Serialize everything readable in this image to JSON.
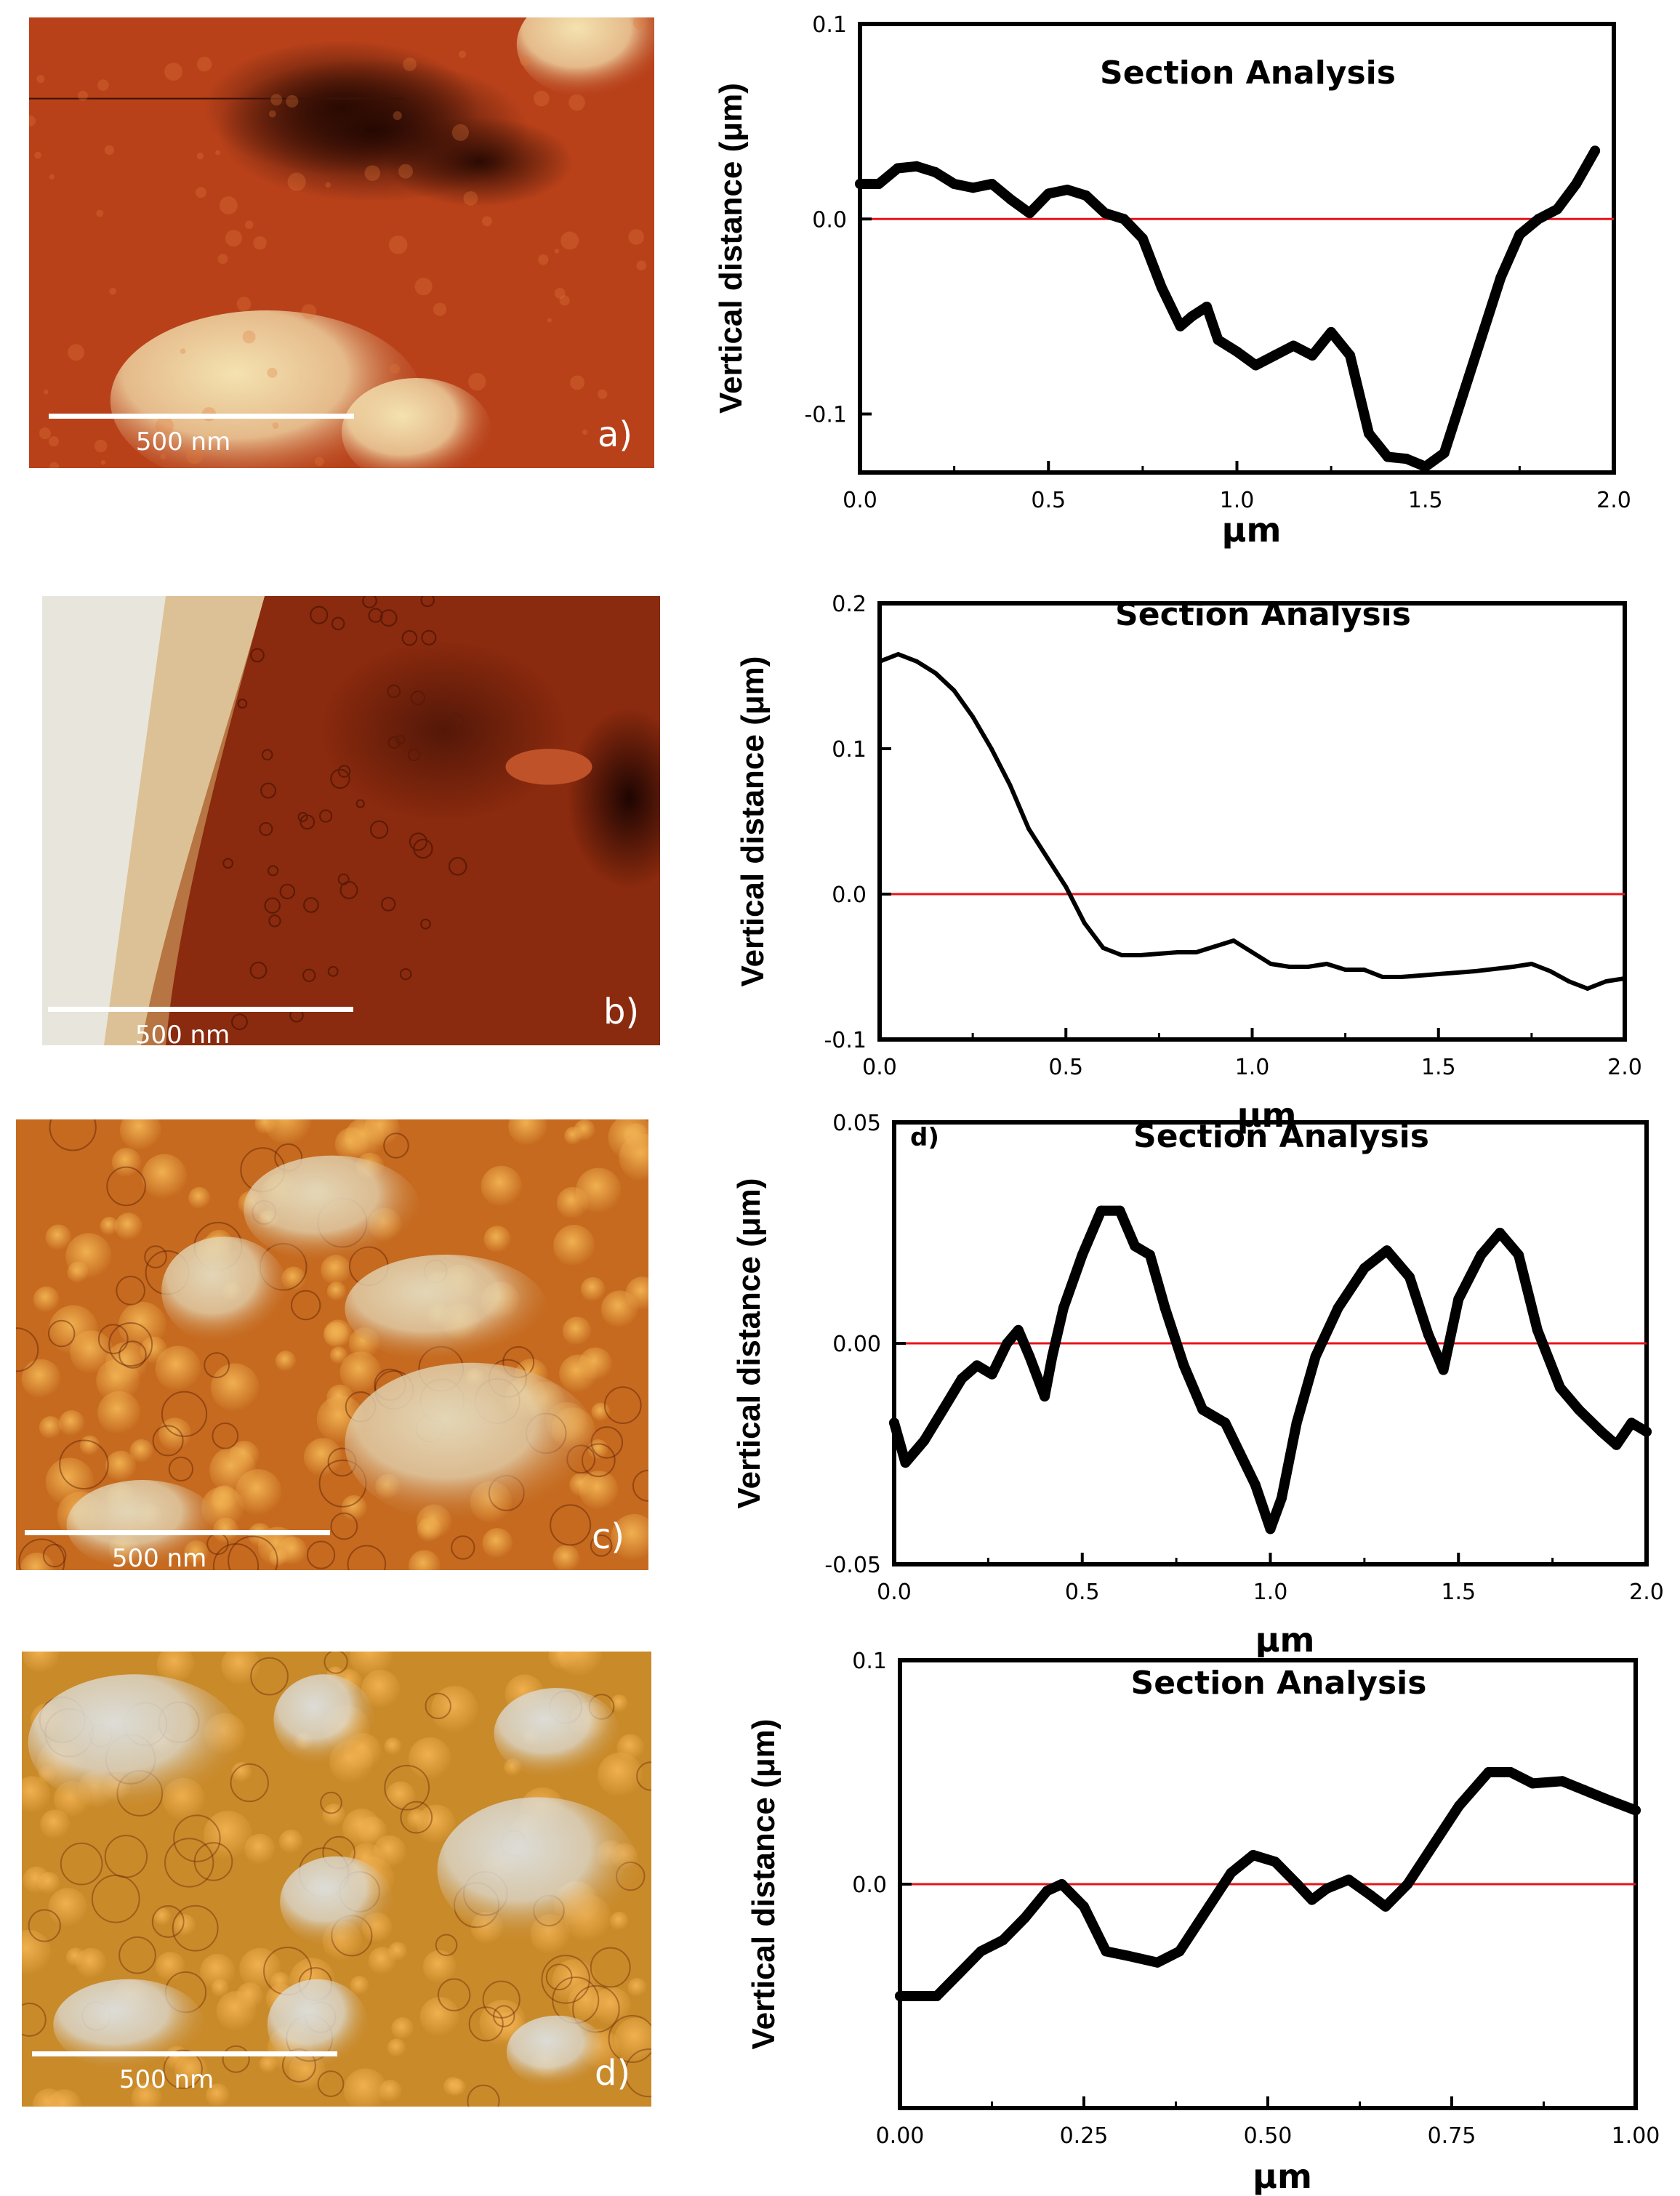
{
  "afm_panels": [
    {
      "scale_bar_label": "500 nm",
      "panel_label": "a)",
      "palette": "dark",
      "colors": {
        "base": "#b8411a",
        "dark": "#2a0a02",
        "light": "#f4e2b0"
      }
    },
    {
      "scale_bar_label": "500 nm",
      "panel_label": "b)",
      "palette": "smooth",
      "colors": {
        "base": "#8a2a0e",
        "dark": "#1e0502",
        "light": "#e8e6dc"
      }
    },
    {
      "scale_bar_label": "500 nm",
      "panel_label": "c)",
      "palette": "grainy",
      "colors": {
        "base": "#c56a1f",
        "dark": "#5a1a05",
        "light": "#e3d6b6"
      }
    },
    {
      "scale_bar_label": "500 nm",
      "panel_label": "d)",
      "palette": "grains",
      "colors": {
        "base": "#c98a2a",
        "dark": "#6a2a08",
        "light": "#dcdcd6"
      }
    }
  ],
  "chart_data": [
    {
      "type": "line",
      "title": "Section Analysis",
      "inset_label": "",
      "xlabel": "μm",
      "ylabel": "Vertical distance  (μm)",
      "xlim": [
        0,
        2.0
      ],
      "ylim": [
        -0.13,
        0.1
      ],
      "xticks": [
        0.0,
        0.5,
        1.0,
        1.5,
        2.0
      ],
      "xtick_labels": [
        "0.0",
        "0.5",
        "1.0",
        "1.5",
        "2.0"
      ],
      "yticks": [
        -0.1,
        0.0,
        0.1
      ],
      "ytick_labels": [
        "-0.1",
        "0.0",
        "0.1"
      ],
      "reference_line": 0,
      "line_color": "#000000",
      "reference_color": "#e8141a",
      "line_width": "thick",
      "series": [
        {
          "name": "profile",
          "x": [
            0.0,
            0.05,
            0.1,
            0.15,
            0.2,
            0.25,
            0.3,
            0.35,
            0.4,
            0.45,
            0.5,
            0.55,
            0.6,
            0.65,
            0.7,
            0.75,
            0.8,
            0.85,
            0.88,
            0.92,
            0.95,
            1.0,
            1.05,
            1.1,
            1.15,
            1.2,
            1.25,
            1.3,
            1.35,
            1.4,
            1.45,
            1.5,
            1.55,
            1.6,
            1.65,
            1.7,
            1.75,
            1.8,
            1.85,
            1.9,
            1.95
          ],
          "y": [
            0.018,
            0.018,
            0.026,
            0.027,
            0.024,
            0.018,
            0.016,
            0.018,
            0.01,
            0.003,
            0.013,
            0.015,
            0.012,
            0.003,
            0.0,
            -0.01,
            -0.035,
            -0.055,
            -0.05,
            -0.045,
            -0.062,
            -0.068,
            -0.075,
            -0.07,
            -0.065,
            -0.07,
            -0.058,
            -0.07,
            -0.11,
            -0.122,
            -0.123,
            -0.127,
            -0.12,
            -0.09,
            -0.06,
            -0.03,
            -0.008,
            0.0,
            0.005,
            0.018,
            0.035
          ]
        }
      ]
    },
    {
      "type": "line",
      "title": "Section Analysis",
      "inset_label": "",
      "xlabel": "μm",
      "ylabel": "Vertical distance  (μm)",
      "xlim": [
        0,
        2.0
      ],
      "ylim": [
        -0.1,
        0.2
      ],
      "xticks": [
        0.0,
        0.5,
        1.0,
        1.5,
        2.0
      ],
      "xtick_labels": [
        "0.0",
        "0.5",
        "1.0",
        "1.5",
        "2.0"
      ],
      "yticks": [
        -0.1,
        0.0,
        0.1,
        0.2
      ],
      "ytick_labels": [
        "-0.1",
        "0.0",
        "0.1",
        "0.2"
      ],
      "reference_line": 0,
      "line_color": "#000000",
      "reference_color": "#e8141a",
      "line_width": "thin",
      "series": [
        {
          "name": "profile",
          "x": [
            0.0,
            0.05,
            0.1,
            0.15,
            0.2,
            0.25,
            0.3,
            0.35,
            0.4,
            0.45,
            0.5,
            0.55,
            0.6,
            0.65,
            0.7,
            0.8,
            0.85,
            0.9,
            0.95,
            1.0,
            1.05,
            1.1,
            1.15,
            1.2,
            1.25,
            1.3,
            1.35,
            1.4,
            1.5,
            1.6,
            1.7,
            1.75,
            1.8,
            1.85,
            1.9,
            1.95,
            2.0
          ],
          "y": [
            0.16,
            0.165,
            0.16,
            0.152,
            0.14,
            0.122,
            0.1,
            0.075,
            0.045,
            0.025,
            0.005,
            -0.02,
            -0.037,
            -0.042,
            -0.042,
            -0.04,
            -0.04,
            -0.036,
            -0.032,
            -0.04,
            -0.048,
            -0.05,
            -0.05,
            -0.048,
            -0.052,
            -0.052,
            -0.057,
            -0.057,
            -0.055,
            -0.053,
            -0.05,
            -0.048,
            -0.053,
            -0.06,
            -0.065,
            -0.06,
            -0.058
          ]
        }
      ]
    },
    {
      "type": "line",
      "title": "Section Analysis",
      "inset_label": "d)",
      "xlabel": "μm",
      "ylabel": "Vertical distance  (μm)",
      "xlim": [
        0,
        2.0
      ],
      "ylim": [
        -0.05,
        0.05
      ],
      "xticks": [
        0.0,
        0.5,
        1.0,
        1.5,
        2.0
      ],
      "xtick_labels": [
        "0.0",
        "0.5",
        "1.0",
        "1.5",
        "2.0"
      ],
      "yticks": [
        -0.05,
        0.0,
        0.05
      ],
      "ytick_labels": [
        "-0.05",
        "0.00",
        "0.05"
      ],
      "reference_line": 0,
      "line_color": "#000000",
      "reference_color": "#e8141a",
      "line_width": "thick",
      "series": [
        {
          "name": "profile",
          "x": [
            0.0,
            0.03,
            0.08,
            0.13,
            0.18,
            0.22,
            0.26,
            0.3,
            0.33,
            0.36,
            0.4,
            0.42,
            0.45,
            0.5,
            0.55,
            0.6,
            0.64,
            0.68,
            0.72,
            0.77,
            0.82,
            0.88,
            0.92,
            0.96,
            1.0,
            1.03,
            1.07,
            1.12,
            1.18,
            1.25,
            1.31,
            1.37,
            1.42,
            1.46,
            1.5,
            1.56,
            1.61,
            1.66,
            1.71,
            1.77,
            1.82,
            1.88,
            1.92,
            1.96,
            2.0
          ],
          "y": [
            -0.018,
            -0.027,
            -0.022,
            -0.015,
            -0.008,
            -0.005,
            -0.007,
            0.0,
            0.003,
            -0.003,
            -0.012,
            -0.003,
            0.008,
            0.02,
            0.03,
            0.03,
            0.022,
            0.02,
            0.008,
            -0.005,
            -0.015,
            -0.018,
            -0.025,
            -0.032,
            -0.042,
            -0.035,
            -0.018,
            -0.003,
            0.008,
            0.017,
            0.021,
            0.015,
            0.002,
            -0.006,
            0.01,
            0.02,
            0.025,
            0.02,
            0.003,
            -0.01,
            -0.015,
            -0.02,
            -0.023,
            -0.018,
            -0.02
          ]
        }
      ]
    },
    {
      "type": "line",
      "title": "Section Analysis",
      "inset_label": "",
      "xlabel": "μm",
      "ylabel": "Vertical distance  (μm)",
      "xlim": [
        0,
        1.0
      ],
      "ylim": [
        -0.1,
        0.1
      ],
      "xticks": [
        0.0,
        0.25,
        0.5,
        0.75,
        1.0
      ],
      "xtick_labels": [
        "0.00",
        "0.25",
        "0.50",
        "0.75",
        "1.00"
      ],
      "yticks": [
        0.0,
        0.1
      ],
      "ytick_labels": [
        "0.0",
        "0.1"
      ],
      "reference_line": 0,
      "line_color": "#000000",
      "reference_color": "#e8141a",
      "line_width": "thick",
      "series": [
        {
          "name": "profile",
          "x": [
            0.0,
            0.02,
            0.05,
            0.08,
            0.11,
            0.14,
            0.17,
            0.2,
            0.22,
            0.25,
            0.28,
            0.31,
            0.35,
            0.38,
            0.42,
            0.45,
            0.48,
            0.51,
            0.54,
            0.56,
            0.58,
            0.61,
            0.64,
            0.66,
            0.69,
            0.72,
            0.76,
            0.8,
            0.83,
            0.86,
            0.9,
            0.93,
            0.96,
            1.0
          ],
          "y": [
            -0.05,
            -0.05,
            -0.05,
            -0.04,
            -0.03,
            -0.025,
            -0.015,
            -0.003,
            0.0,
            -0.01,
            -0.03,
            -0.032,
            -0.035,
            -0.03,
            -0.01,
            0.005,
            0.013,
            0.01,
            0.0,
            -0.007,
            -0.002,
            0.002,
            -0.005,
            -0.01,
            0.0,
            0.015,
            0.035,
            0.05,
            0.05,
            0.045,
            0.046,
            0.042,
            0.038,
            0.033
          ]
        }
      ]
    }
  ]
}
